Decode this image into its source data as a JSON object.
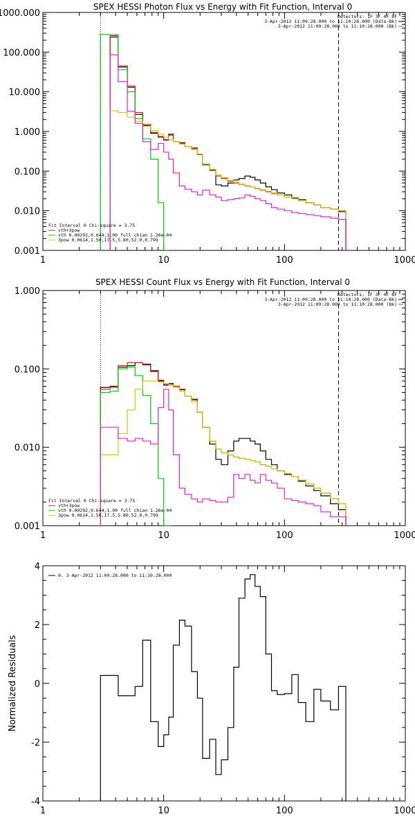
{
  "chart_data": [
    {
      "type": "line",
      "title": "SPEX HESSI Photon Flux vs Energy with Fit Function, Interval 0",
      "xscale": "log",
      "yscale": "log",
      "xlim": [
        1,
        1000
      ],
      "ylim": [
        0.001,
        1000
      ],
      "xticks": [
        "1",
        "10",
        "100",
        "1000"
      ],
      "yticks": [
        "0.001",
        "0.010",
        "0.100",
        "1.000",
        "10.000",
        "100.000",
        "1000.000"
      ],
      "vlines": [
        {
          "x": 3.0,
          "style": "dotted",
          "color": "#000000"
        },
        {
          "x": 280,
          "style": "dashed",
          "color": "#000000"
        }
      ],
      "header_text": [
        "Detectors: 1F 3F 4F 8F",
        "3-Apr-2012 11:09:28.000 to 11:10:28.000 (Data-Bk)",
        "3-Apr-2012 11:09:28.000 to 11:10:28.000 (Bk)"
      ],
      "legend": [
        {
          "text": "Fit Interval 0   Chi-square = 3.75",
          "color": "#000000"
        },
        {
          "text": "vth+3pow",
          "color": "#e02020"
        },
        {
          "text": "vth 0.00292,0.644,1.00  full chian 1.26e-04",
          "color": "#00cc00"
        },
        {
          "text": "3pow 0.0614,1.50,17.5,5.80,52.0,0.799",
          "color": "#cccc00"
        }
      ],
      "series": [
        {
          "color": "#000000",
          "step": true,
          "x": [
            3,
            3.6,
            4.2,
            5,
            5.8,
            6.7,
            7.8,
            9,
            10,
            11,
            12,
            13.5,
            15,
            17,
            19,
            21,
            24,
            27,
            30,
            34,
            38,
            42,
            47,
            52,
            57,
            63,
            70,
            78,
            87,
            100,
            115,
            130,
            150,
            175,
            200,
            240,
            280
          ],
          "y": [
            null,
            240,
            42,
            13,
            2.7,
            1.4,
            0.9,
            0.72,
            0.6,
            0.85,
            0.55,
            0.52,
            0.42,
            0.38,
            0.27,
            0.145,
            0.105,
            0.045,
            0.042,
            0.05,
            0.06,
            0.065,
            0.075,
            0.07,
            0.06,
            0.05,
            0.04,
            0.034,
            0.028,
            0.025,
            0.021,
            0.019,
            0.016,
            0.014,
            0.012,
            0.011,
            0.0095
          ]
        },
        {
          "color": "#e02020",
          "step": true,
          "x": [
            3,
            3.6,
            4.2,
            5,
            5.8,
            6.7,
            7.8,
            9,
            10,
            11,
            12,
            13.5,
            15,
            17,
            19,
            21,
            24,
            27,
            30,
            34,
            38,
            42,
            47,
            52,
            57,
            63,
            70,
            78,
            87,
            100,
            115,
            130,
            150,
            175,
            200,
            240,
            280
          ],
          "y": [
            null,
            270,
            45,
            14,
            3.0,
            1.5,
            0.95,
            0.75,
            0.62,
            0.8,
            0.55,
            0.5,
            0.42,
            0.37,
            0.26,
            0.15,
            0.11,
            0.075,
            0.065,
            0.055,
            0.05,
            0.046,
            0.042,
            0.04,
            0.036,
            0.033,
            0.03,
            0.027,
            0.025,
            0.022,
            0.02,
            0.018,
            0.016,
            0.014,
            0.012,
            0.011,
            0.01
          ]
        },
        {
          "color": "#00cc00",
          "step": true,
          "x": [
            3,
            3.6,
            4.2,
            5,
            5.8,
            6.7,
            7.8,
            9,
            10,
            11
          ],
          "y": [
            280,
            260,
            36,
            10,
            2.1,
            0.65,
            0.2,
            0.016,
            0.001,
            null
          ]
        },
        {
          "color": "#cccc00",
          "step": true,
          "x": [
            3,
            3.6,
            4.2,
            5,
            5.8,
            6.7,
            7.8,
            9,
            10,
            11,
            12,
            13.5,
            15,
            17,
            19,
            21,
            24,
            27,
            30,
            34,
            38,
            42,
            47,
            52,
            57,
            63,
            70,
            78,
            87,
            100,
            115,
            130,
            150,
            175,
            200,
            240,
            280
          ],
          "y": [
            null,
            3.3,
            3.0,
            2.3,
            1.8,
            1.35,
            1.05,
            0.85,
            0.72,
            0.62,
            0.55,
            0.48,
            0.42,
            0.35,
            0.27,
            0.15,
            0.11,
            0.08,
            0.068,
            0.058,
            0.052,
            0.047,
            0.043,
            0.04,
            0.037,
            0.034,
            0.031,
            0.028,
            0.025,
            0.022,
            0.02,
            0.018,
            0.016,
            0.014,
            0.012,
            0.011,
            0.01
          ]
        },
        {
          "color": "#e020e0",
          "step": true,
          "x": [
            3,
            3.6,
            4.2,
            5,
            5.8,
            6.7,
            7.8,
            9,
            10,
            11,
            12,
            13.5,
            15,
            17,
            19,
            21,
            24,
            27,
            30,
            34,
            38,
            42,
            47,
            52,
            57,
            63,
            70,
            78,
            87,
            100,
            115,
            130,
            150,
            175,
            200,
            240,
            280
          ],
          "y": [
            null,
            85,
            18,
            3.2,
            1.6,
            0.55,
            0.35,
            0.5,
            0.3,
            0.2,
            0.09,
            0.042,
            0.035,
            0.03,
            0.025,
            0.033,
            0.025,
            0.022,
            0.018,
            0.019,
            0.02,
            0.021,
            0.025,
            0.023,
            0.02,
            0.018,
            0.015,
            0.012,
            0.011,
            0.01,
            0.009,
            0.0085,
            0.008,
            0.0075,
            0.007,
            0.0065,
            0.006
          ]
        }
      ]
    },
    {
      "type": "line",
      "title": "SPEX HESSI Count Flux vs Energy with Fit Function, Interval 0",
      "xscale": "log",
      "yscale": "log",
      "xlim": [
        1,
        1000
      ],
      "ylim": [
        0.001,
        1
      ],
      "xticks": [
        "1",
        "10",
        "100",
        "1000"
      ],
      "yticks": [
        "0.001",
        "0.010",
        "0.100",
        "1.000"
      ],
      "vlines": [
        {
          "x": 3.0,
          "style": "dotted",
          "color": "#000000"
        },
        {
          "x": 280,
          "style": "dashed",
          "color": "#000000"
        }
      ],
      "header_text": [
        "Detectors: 1F 3F 4F 8F",
        "3-Apr-2012 11:09:28.000 to 11:10:28.000 (Data-Bk)",
        "3-Apr-2012 11:09:28.000 to 11:10:28.000 (Bk)"
      ],
      "legend": [
        {
          "text": "Fit Interval 0   Chi-square = 3.75",
          "color": "#000000"
        },
        {
          "text": "vth+3pow",
          "color": "#e02020"
        },
        {
          "text": "vth 0.00292,0.644,1.00  full chian 1.26e-04",
          "color": "#00cc00"
        },
        {
          "text": "3pow 0.0614,1.50,17.5,5.80,52.0,0.799",
          "color": "#cccc00"
        }
      ],
      "series": [
        {
          "color": "#000000",
          "step": true,
          "x": [
            3,
            3.6,
            4.2,
            5,
            5.8,
            6.7,
            7.8,
            9,
            10,
            11,
            12,
            13.5,
            15,
            17,
            19,
            21,
            24,
            27,
            30,
            34,
            38,
            42,
            47,
            52,
            57,
            63,
            70,
            78,
            87,
            100,
            115,
            130,
            150,
            175,
            200,
            240,
            280
          ],
          "y": [
            0.058,
            0.06,
            0.105,
            0.11,
            0.12,
            0.115,
            0.095,
            0.07,
            0.062,
            0.065,
            0.06,
            0.055,
            0.045,
            0.041,
            0.028,
            0.018,
            0.011,
            0.007,
            0.006,
            0.009,
            0.012,
            0.013,
            0.013,
            0.012,
            0.011,
            0.009,
            0.007,
            0.006,
            0.005,
            0.0045,
            0.0042,
            0.0037,
            0.0032,
            0.0028,
            0.0024,
            0.0019,
            0.0016
          ]
        },
        {
          "color": "#e02020",
          "step": true,
          "x": [
            3,
            3.6,
            4.2,
            5,
            5.8,
            6.7,
            7.8,
            9,
            10,
            11,
            12,
            13.5,
            15,
            17,
            19,
            21,
            24,
            27,
            30,
            34,
            38,
            42,
            47,
            52,
            57,
            63,
            70,
            78,
            87,
            100,
            115,
            130,
            150,
            175,
            200,
            240,
            280
          ],
          "y": [
            0.055,
            0.058,
            0.11,
            0.12,
            0.12,
            0.112,
            0.092,
            0.072,
            0.064,
            0.063,
            0.06,
            0.054,
            0.045,
            0.04,
            0.028,
            0.018,
            0.012,
            0.0095,
            0.0085,
            0.008,
            0.0075,
            0.0072,
            0.007,
            0.0068,
            0.0065,
            0.006,
            0.0057,
            0.0053,
            0.005,
            0.0046,
            0.0042,
            0.0038,
            0.0034,
            0.003,
            0.0026,
            0.0022,
            0.0019
          ]
        },
        {
          "color": "#00cc00",
          "step": true,
          "x": [
            3,
            3.6,
            4.2,
            5,
            5.8,
            6.7,
            7.8,
            9,
            10
          ],
          "y": [
            0.05,
            0.052,
            0.1,
            0.105,
            0.082,
            0.046,
            0.02,
            0.004,
            0.001
          ]
        },
        {
          "color": "#cccc00",
          "step": true,
          "x": [
            3,
            3.6,
            4.2,
            5,
            5.8,
            6.7,
            7.8,
            9,
            10,
            11,
            12,
            13.5,
            15,
            17,
            19,
            21,
            24,
            27,
            30,
            34,
            38,
            42,
            47,
            52,
            57,
            63,
            70,
            78,
            87,
            100,
            115,
            130,
            150,
            175,
            200,
            240,
            280
          ],
          "y": [
            0.008,
            0.008,
            0.015,
            0.03,
            0.055,
            0.07,
            0.07,
            0.068,
            0.065,
            0.062,
            0.058,
            0.052,
            0.045,
            0.038,
            0.028,
            0.018,
            0.012,
            0.0095,
            0.0085,
            0.008,
            0.0075,
            0.0072,
            0.007,
            0.0068,
            0.0065,
            0.006,
            0.0057,
            0.0053,
            0.005,
            0.0046,
            0.0042,
            0.0038,
            0.0034,
            0.003,
            0.0026,
            0.0022,
            0.0019
          ]
        },
        {
          "color": "#e020e0",
          "step": true,
          "x": [
            3,
            3.6,
            4.2,
            5,
            5.8,
            6.7,
            7.8,
            9,
            10,
            11,
            12,
            13.5,
            15,
            17,
            19,
            21,
            24,
            27,
            30,
            34,
            38,
            42,
            47,
            52,
            57,
            63,
            70,
            78,
            87,
            100,
            115,
            130,
            150,
            175,
            200,
            240,
            280
          ],
          "y": [
            0.018,
            0.018,
            0.013,
            0.012,
            0.013,
            0.012,
            0.011,
            0.032,
            0.055,
            0.03,
            0.008,
            0.003,
            0.0025,
            0.0022,
            0.002,
            0.0022,
            0.0021,
            0.002,
            0.002,
            0.0023,
            0.0045,
            0.004,
            0.0045,
            0.0038,
            0.0035,
            0.0045,
            0.0038,
            0.0035,
            0.003,
            0.0022,
            0.0021,
            0.002,
            0.0019,
            0.0018,
            0.0015,
            0.0013,
            0.0013
          ]
        }
      ]
    },
    {
      "type": "line",
      "title": "",
      "xscale": "log",
      "yscale": "linear",
      "xlim": [
        1,
        1000
      ],
      "ylim": [
        -4,
        4
      ],
      "xticks": [
        "1",
        "10",
        "100",
        "1000"
      ],
      "yticks": [
        "-4",
        "-2",
        "0",
        "2",
        "4"
      ],
      "ylabel": "Normalized Residuals",
      "legend": [
        {
          "text": "0. 3-Apr-2012 11:09:28.000 to 11:10:28.000",
          "color": "#000000"
        }
      ],
      "series": [
        {
          "color": "#000000",
          "step": true,
          "x": [
            3,
            3.6,
            4.2,
            5,
            5.8,
            6.7,
            7.8,
            9,
            10,
            11,
            12,
            13.5,
            15,
            17,
            19,
            21,
            24,
            27,
            30,
            34,
            38,
            42,
            47,
            52,
            57,
            63,
            70,
            78,
            87,
            100,
            115,
            130,
            150,
            175,
            200,
            240,
            280
          ],
          "y": [
            0.27,
            0.27,
            -0.42,
            -0.42,
            -0.1,
            1.47,
            -1.3,
            -2.15,
            -1.75,
            -1.15,
            1.3,
            2.15,
            1.95,
            0.4,
            -0.5,
            -2.55,
            -1.9,
            -3.1,
            -2.6,
            -1.5,
            0.55,
            2.9,
            3.55,
            3.7,
            3.3,
            2.95,
            1.0,
            -0.25,
            -0.38,
            -0.35,
            0.3,
            -0.65,
            -1.3,
            -0.2,
            -0.6,
            -0.9,
            -0.1
          ]
        }
      ]
    }
  ]
}
